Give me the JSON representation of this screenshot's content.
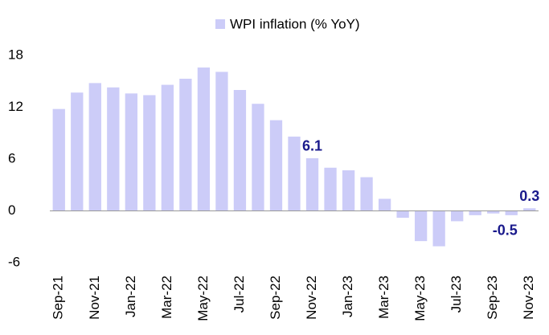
{
  "chart_data": {
    "type": "bar",
    "legend": "WPI inflation (% YoY)",
    "categories": [
      "Sep-21",
      null,
      "Nov-21",
      null,
      "Jan-22",
      null,
      "Mar-22",
      null,
      "May-22",
      null,
      "Jul-22",
      null,
      "Sep-22",
      null,
      "Nov-22",
      null,
      "Jan-23",
      null,
      "Mar-23",
      null,
      "May-23",
      null,
      "Jul-23",
      null,
      "Sep-23",
      null,
      "Nov-23"
    ],
    "values": [
      11.8,
      13.7,
      14.8,
      14.3,
      13.6,
      13.4,
      14.6,
      15.3,
      16.6,
      16.1,
      14.0,
      12.4,
      10.5,
      8.6,
      6.1,
      5.0,
      4.7,
      3.9,
      1.4,
      -0.8,
      -3.5,
      -4.1,
      -1.2,
      -0.5,
      -0.3,
      -0.5,
      0.3
    ],
    "labeled_indices": [
      14,
      25,
      26
    ],
    "color": "#ccccf8",
    "ylim": [
      -6,
      18
    ],
    "yticks": [
      -6,
      0,
      6,
      12,
      18
    ],
    "grid": false
  }
}
